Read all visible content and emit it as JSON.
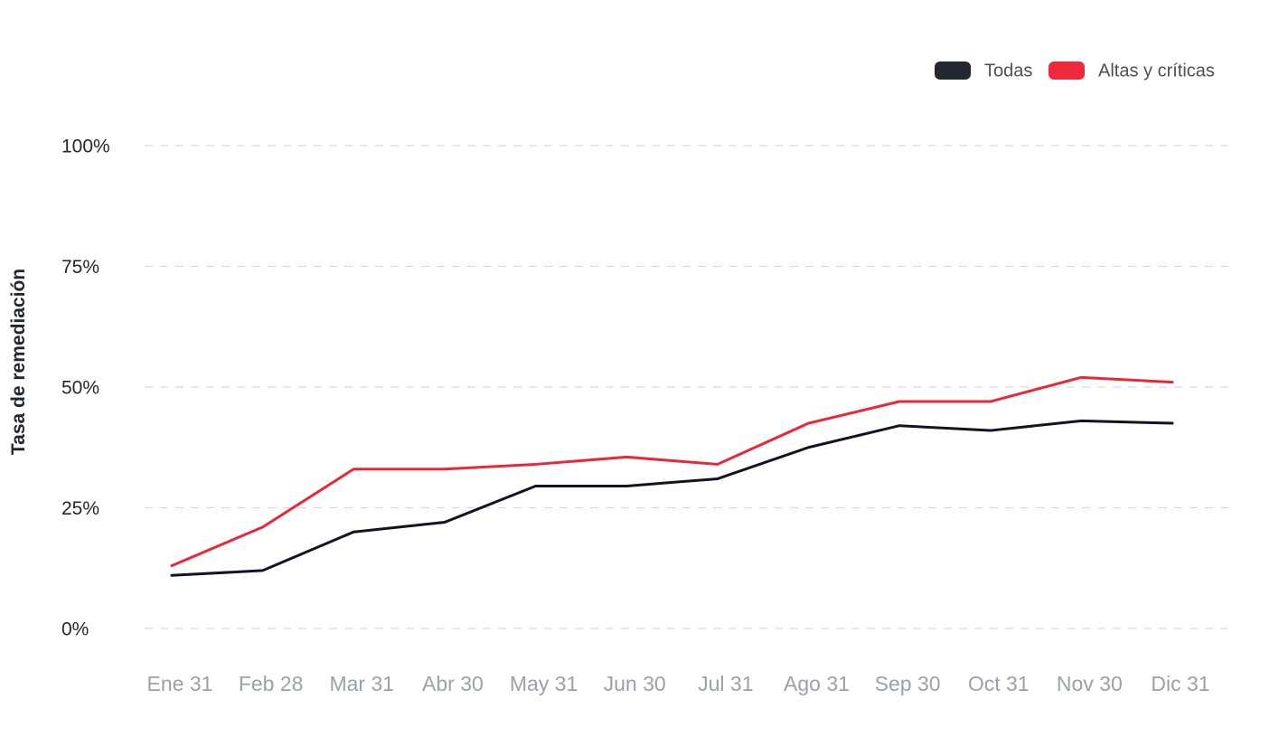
{
  "chart_data": {
    "type": "line",
    "title": "",
    "xlabel": "",
    "ylabel": "Tasa de remediación",
    "categories": [
      "Ene 31",
      "Feb 28",
      "Mar 31",
      "Abr 30",
      "May 31",
      "Jun 30",
      "Jul 31",
      "Ago 31",
      "Sep 30",
      "Oct 31",
      "Nov 30",
      "Dic 31"
    ],
    "ylim": [
      0,
      100
    ],
    "yticks": [
      0,
      25,
      50,
      75,
      100
    ],
    "ytick_labels": [
      "0%",
      "25%",
      "50%",
      "75%",
      "100%"
    ],
    "grid": true,
    "legend_position": "top-right",
    "series": [
      {
        "name": "Todas",
        "color": "#111522",
        "legend_color": "#23272f",
        "values": [
          11,
          12,
          20,
          22,
          29.5,
          29.5,
          31,
          37.5,
          42,
          41,
          43,
          42.5
        ]
      },
      {
        "name": "Altas y críticas",
        "color": "#e8283a",
        "legend_color": "#f0283c",
        "values": [
          13,
          21,
          33,
          33,
          34,
          35.5,
          34,
          42.5,
          47,
          47,
          52,
          51
        ]
      }
    ]
  }
}
